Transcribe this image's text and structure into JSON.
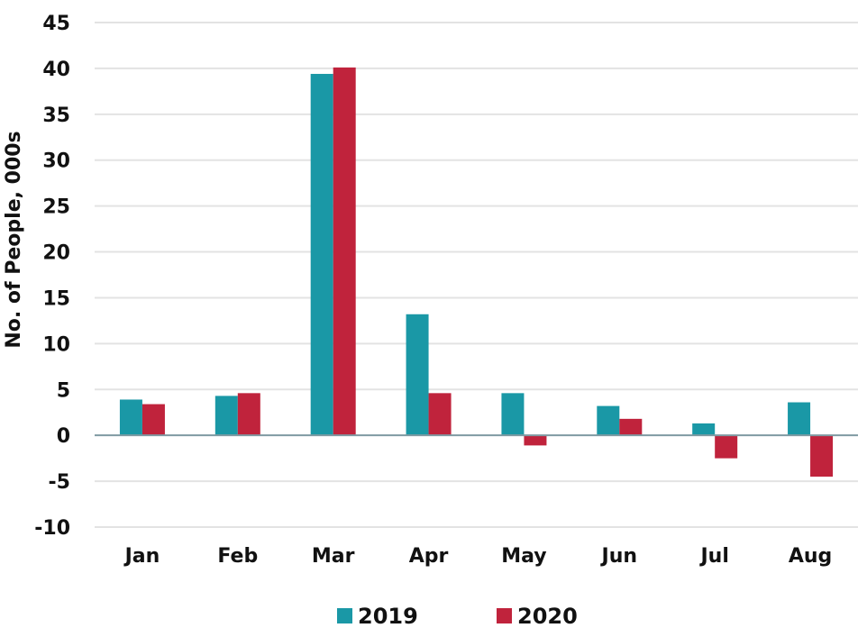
{
  "chart_data": {
    "type": "bar",
    "title": "",
    "xlabel": "",
    "ylabel": "No. of People, 000s",
    "categories": [
      "Jan",
      "Feb",
      "Mar",
      "Apr",
      "May",
      "Jun",
      "Jul",
      "Aug"
    ],
    "series": [
      {
        "name": "2019",
        "color": "#1a98a6",
        "values": [
          3.9,
          4.3,
          39.4,
          13.2,
          4.6,
          3.2,
          1.3,
          3.6
        ]
      },
      {
        "name": "2020",
        "color": "#c0233c",
        "values": [
          3.4,
          4.6,
          40.1,
          4.6,
          -1.1,
          1.8,
          -2.5,
          -4.5
        ]
      }
    ],
    "ylim": [
      -10,
      45
    ],
    "yticks": [
      -10,
      -5,
      0,
      5,
      10,
      15,
      20,
      25,
      30,
      35,
      40,
      45
    ],
    "ytick_labels": [
      "-10",
      "-5",
      "0",
      "5",
      "10",
      "15",
      "20",
      "25",
      "30",
      "35",
      "40",
      "45"
    ],
    "grid": true,
    "legend_position": "bottom-center"
  }
}
